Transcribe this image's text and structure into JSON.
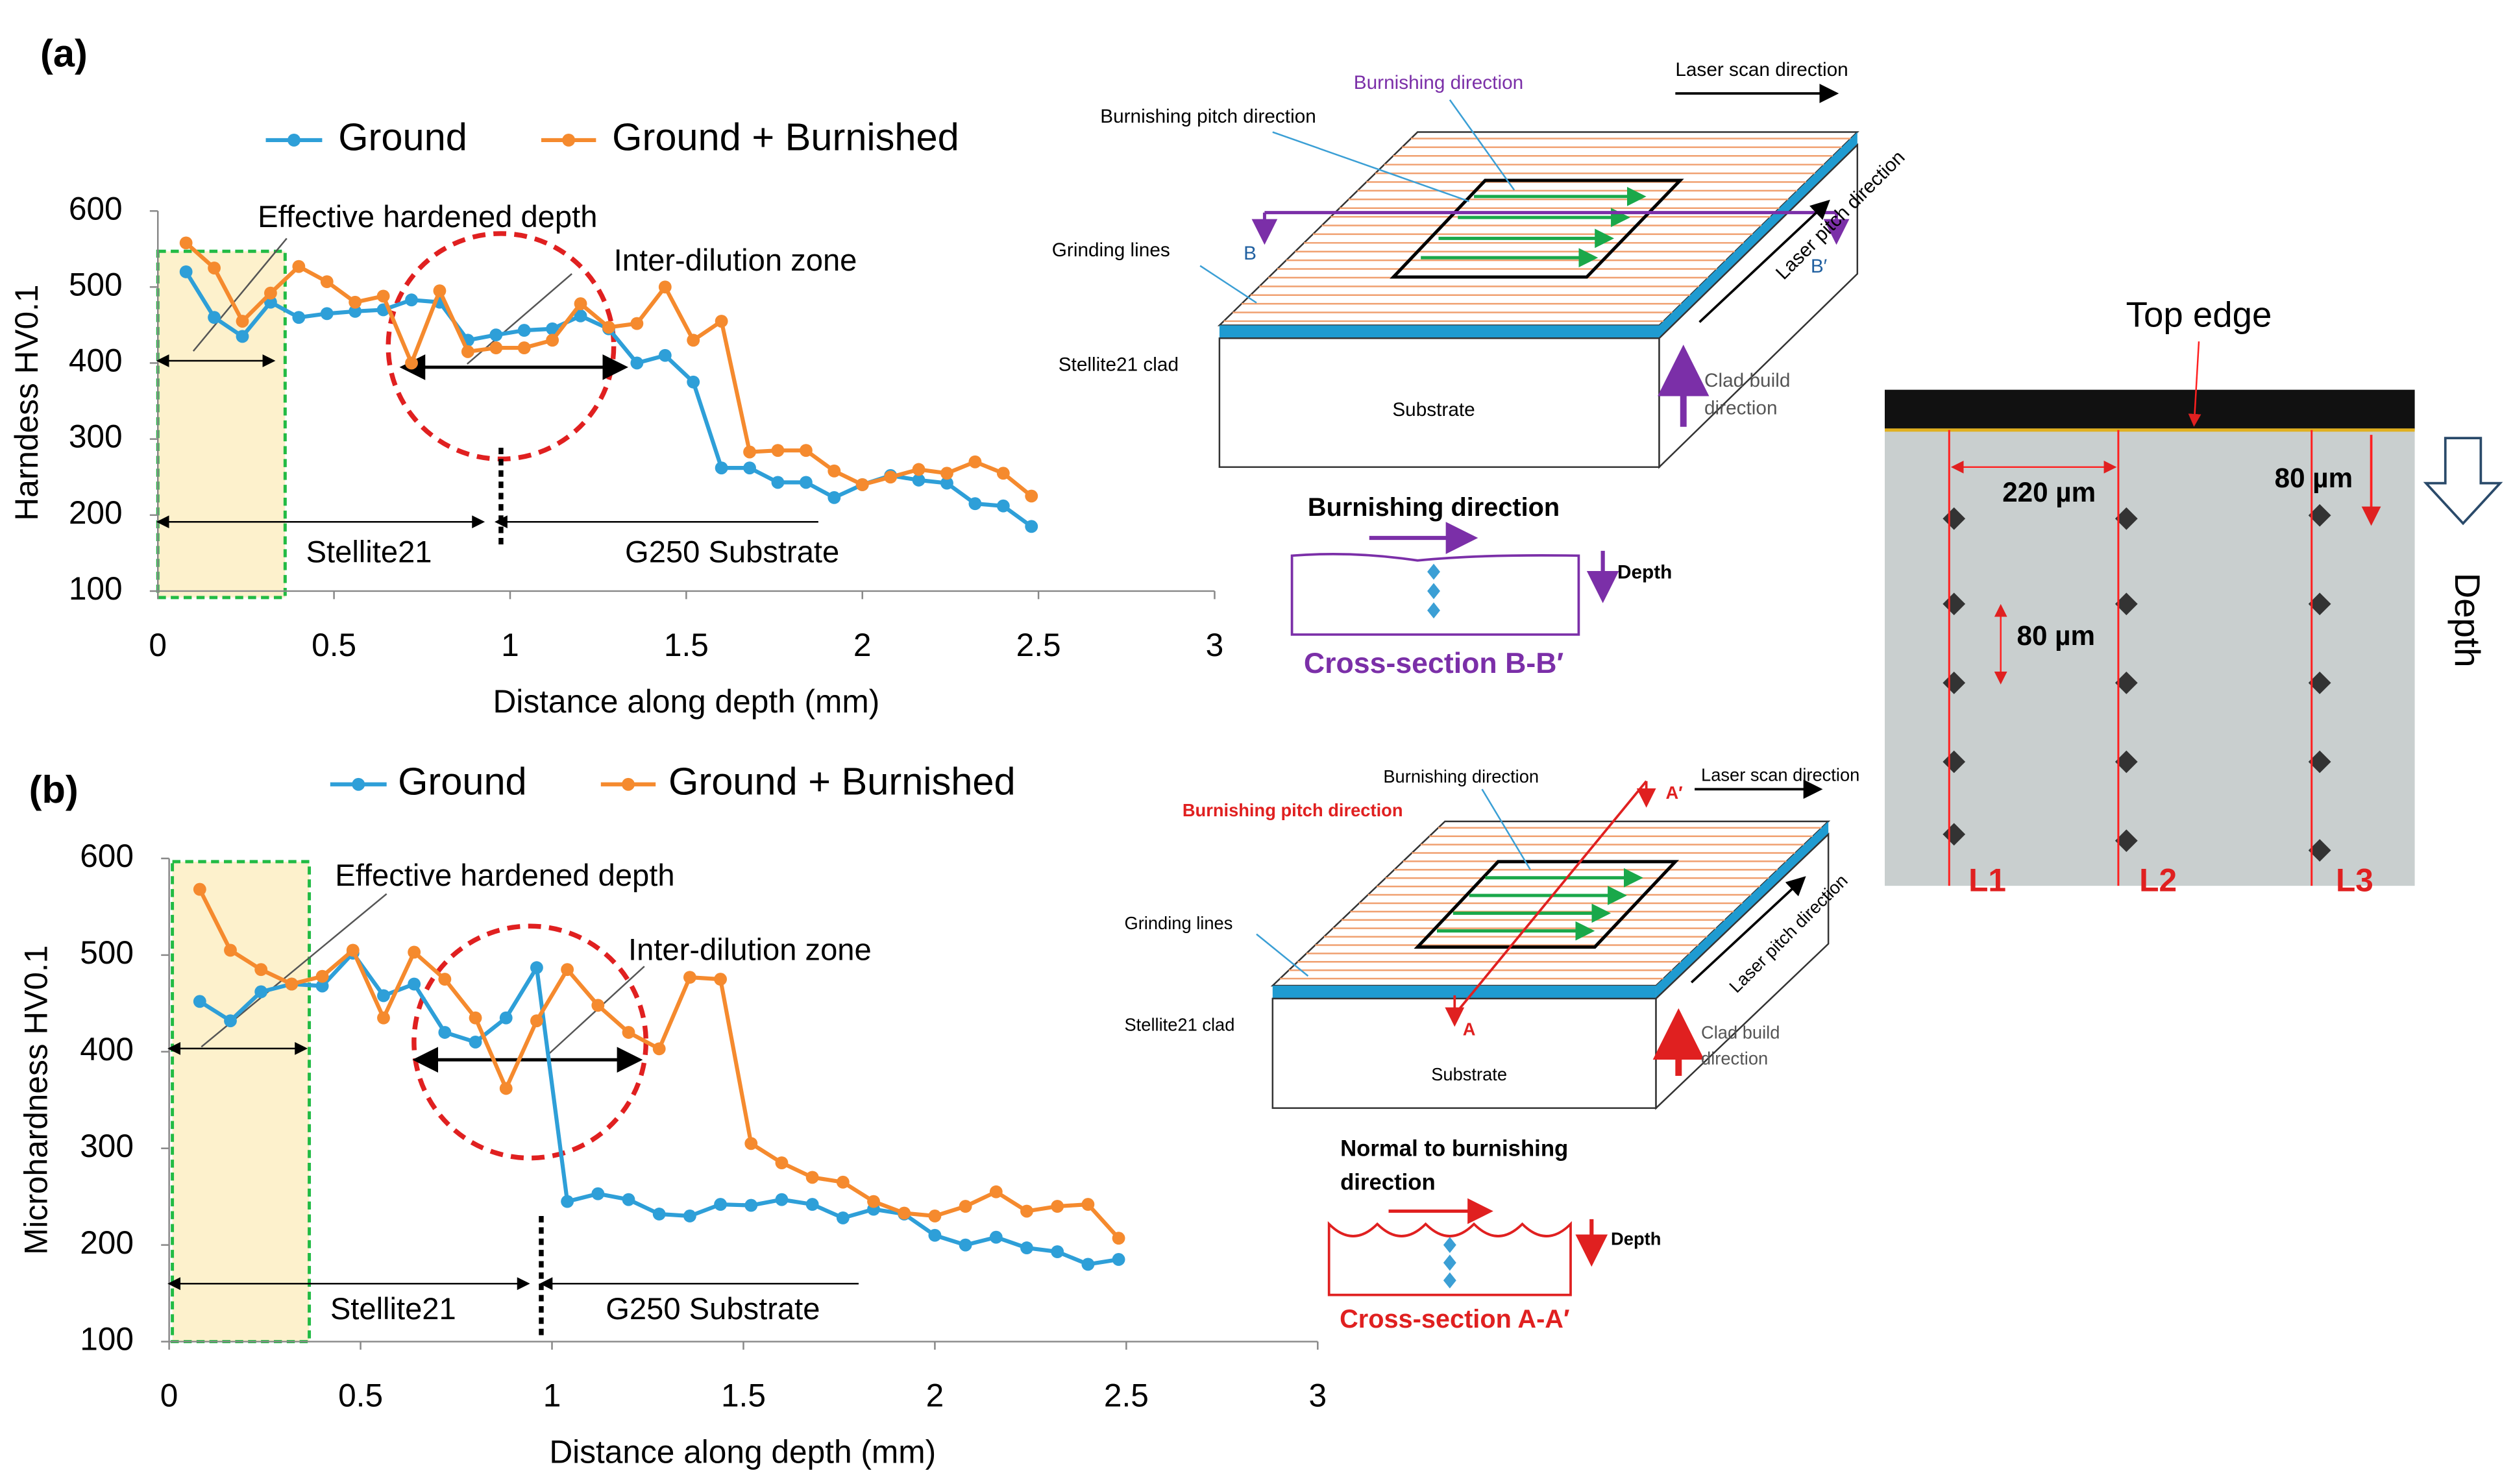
{
  "chart_data": [
    {
      "type": "line",
      "label": "(a)",
      "x_label": "Distance along depth (mm)",
      "y_label": "Harndess HV0.1",
      "x": [
        0.08,
        0.16,
        0.24,
        0.32,
        0.4,
        0.48,
        0.56,
        0.64,
        0.72,
        0.8,
        0.88,
        0.96,
        1.04,
        1.12,
        1.2,
        1.28,
        1.36,
        1.44,
        1.52,
        1.6,
        1.68,
        1.76,
        1.84,
        1.92,
        2,
        2.08,
        2.16,
        2.24,
        2.32,
        2.4,
        2.48
      ],
      "series": [
        {
          "name": "Ground",
          "color": "#2e9fd8",
          "values": [
            520,
            460,
            435,
            480,
            460,
            465,
            468,
            470,
            483,
            480,
            430,
            437,
            443,
            445,
            462,
            445,
            400,
            410,
            375,
            262,
            262,
            243,
            243,
            223,
            240,
            252,
            246,
            242,
            215,
            212,
            185
          ]
        },
        {
          "name": "Ground + Burnished",
          "color": "#f58a2e",
          "values": [
            558,
            525,
            455,
            492,
            527,
            507,
            480,
            488,
            400,
            495,
            415,
            420,
            420,
            430,
            478,
            447,
            452,
            500,
            430,
            455,
            283,
            285,
            285,
            258,
            240,
            250,
            260,
            255,
            270,
            255,
            225
          ]
        }
      ],
      "xlim": [
        0,
        3
      ],
      "ylim": [
        100,
        600
      ],
      "xticks": [
        0,
        0.5,
        1,
        1.5,
        2,
        2.5,
        3
      ],
      "yticks": [
        100,
        200,
        300,
        400,
        500,
        600
      ],
      "annotations": {
        "effective": "Effective hardened depth",
        "inter": "Inter-dilution zone",
        "stellite": "Stellite21",
        "substrate": "G250 Substrate"
      }
    },
    {
      "type": "line",
      "label": "(b)",
      "x_label": "Distance along depth  (mm)",
      "y_label": "Microhardness HV0.1",
      "x": [
        0.08,
        0.16,
        0.24,
        0.32,
        0.4,
        0.48,
        0.56,
        0.64,
        0.72,
        0.8,
        0.88,
        0.96,
        1.04,
        1.12,
        1.2,
        1.28,
        1.36,
        1.44,
        1.52,
        1.6,
        1.68,
        1.76,
        1.84,
        1.92,
        2,
        2.08,
        2.16,
        2.24,
        2.32,
        2.4,
        2.48
      ],
      "series": [
        {
          "name": "Ground",
          "color": "#2e9fd8",
          "values": [
            452,
            432,
            462,
            470,
            468,
            502,
            458,
            470,
            420,
            410,
            435,
            487,
            245,
            253,
            247,
            232,
            230,
            242,
            241,
            247,
            242,
            228,
            237,
            232,
            210,
            200,
            208,
            197,
            193,
            180,
            185
          ]
        },
        {
          "name": "Ground + Burnished",
          "color": "#f58a2e",
          "values": [
            568,
            505,
            485,
            470,
            478,
            505,
            435,
            503,
            475,
            435,
            362,
            432,
            485,
            448,
            420,
            403,
            477,
            475,
            305,
            285,
            270,
            265,
            245,
            233,
            230,
            240,
            255,
            235,
            240,
            242,
            207
          ]
        }
      ],
      "xlim": [
        0,
        3
      ],
      "ylim": [
        100,
        600
      ],
      "xticks": [
        0,
        0.5,
        1,
        1.5,
        2,
        2.5,
        3
      ],
      "yticks": [
        100,
        200,
        300,
        400,
        500,
        600
      ],
      "annotations": {
        "effective": "Effective hardened depth",
        "inter": "Inter-dilution zone",
        "stellite": "Stellite21",
        "substrate": "G250 Substrate"
      }
    }
  ],
  "diagram_top": {
    "burnishing_direction": "Burnishing direction",
    "laser_scan": "Laser scan direction",
    "pitch": "Burnishing pitch direction",
    "grinding": "Grinding lines",
    "b": "B",
    "b_prime": "B′",
    "clad": "Stellite21 clad",
    "substrate": "Substrate",
    "laser_pitch": "Laser pitch direction",
    "clad_build": [
      "Clad build",
      "direction"
    ],
    "cs_direction": "Burnishing direction",
    "depth": "Depth",
    "cross_section": "Cross-section B-B′"
  },
  "diagram_bottom": {
    "burnishing_direction": "Burnishing direction",
    "laser_scan": "Laser scan direction",
    "pitch": "Burnishing pitch direction",
    "a_prime": "A′",
    "grinding": "Grinding lines",
    "clad": "Stellite21 clad",
    "a": "A",
    "substrate": "Substrate",
    "clad_build": [
      "Clad build",
      "direction"
    ],
    "laser_pitch": "Laser pitch direction",
    "cs_direction": [
      "Normal to burnishing",
      "direction"
    ],
    "depth": "Depth",
    "cross_section": "Cross-section A-A′"
  },
  "micrograph": {
    "top_edge": "Top edge",
    "spacing_h": "220 µm",
    "spacing_top": "80 µm",
    "spacing_v": "80 µm",
    "lines": [
      "L1",
      "L2",
      "L3"
    ],
    "depth": "Depth"
  }
}
